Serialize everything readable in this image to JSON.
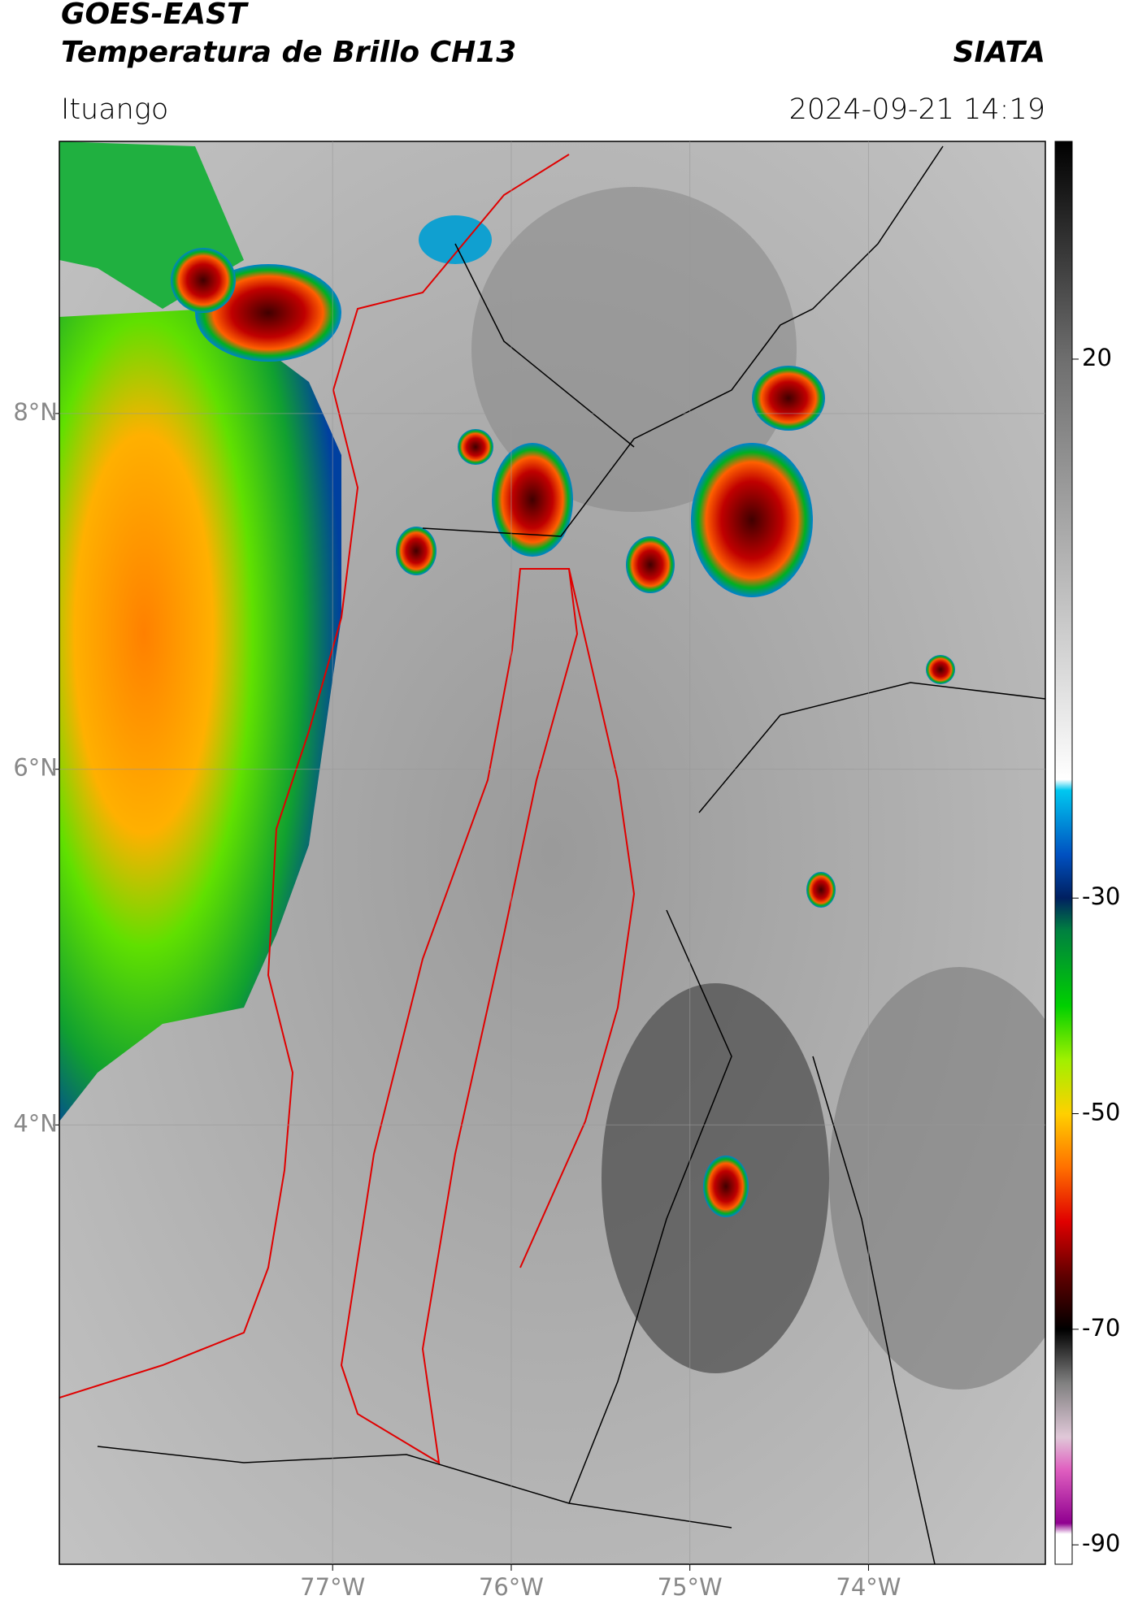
{
  "chart_data": {
    "type": "map",
    "title": "GOES-EAST",
    "subtitle": "Temperatura de Brillo CH13",
    "source": "SIATA",
    "location": "Ituango",
    "datetime": "2024-09-21 14:19",
    "xlim": [
      -78.53,
      -73.01
    ],
    "ylim": [
      1.53,
      9.53
    ],
    "xticks": [
      {
        "value": -77,
        "label": "77°W"
      },
      {
        "value": -76,
        "label": "76°W"
      },
      {
        "value": -75,
        "label": "75°W"
      },
      {
        "value": -74,
        "label": "74°W"
      }
    ],
    "yticks": [
      {
        "value": 8,
        "label": "8°N"
      },
      {
        "value": 6,
        "label": "6°N"
      },
      {
        "value": 4,
        "label": "4°N"
      }
    ],
    "grid": true,
    "colorbar": {
      "lim": [
        -91.8,
        40.2
      ],
      "ticks": [
        20,
        -30,
        -50,
        -70,
        -90
      ],
      "colormap": [
        {
          "value": 40.2,
          "color": "#000000"
        },
        {
          "value": 20,
          "color": "#6e6e6e"
        },
        {
          "value": -19,
          "color": "#ffffff"
        },
        {
          "value": -20,
          "color": "#00c8f0"
        },
        {
          "value": -26,
          "color": "#0050c0"
        },
        {
          "value": -30,
          "color": "#002060"
        },
        {
          "value": -33,
          "color": "#008040"
        },
        {
          "value": -40,
          "color": "#00d000"
        },
        {
          "value": -45,
          "color": "#a0f000"
        },
        {
          "value": -50,
          "color": "#ffd000"
        },
        {
          "value": -55,
          "color": "#ff7000"
        },
        {
          "value": -60,
          "color": "#e00000"
        },
        {
          "value": -65,
          "color": "#600000"
        },
        {
          "value": -70,
          "color": "#000000"
        },
        {
          "value": -75,
          "color": "#808080"
        },
        {
          "value": -80,
          "color": "#e0c8d8"
        },
        {
          "value": -83,
          "color": "#e060c0"
        },
        {
          "value": -88,
          "color": "#900090"
        },
        {
          "value": -89,
          "color": "#ffffff"
        },
        {
          "value": -91.8,
          "color": "#ffffff"
        }
      ]
    }
  }
}
